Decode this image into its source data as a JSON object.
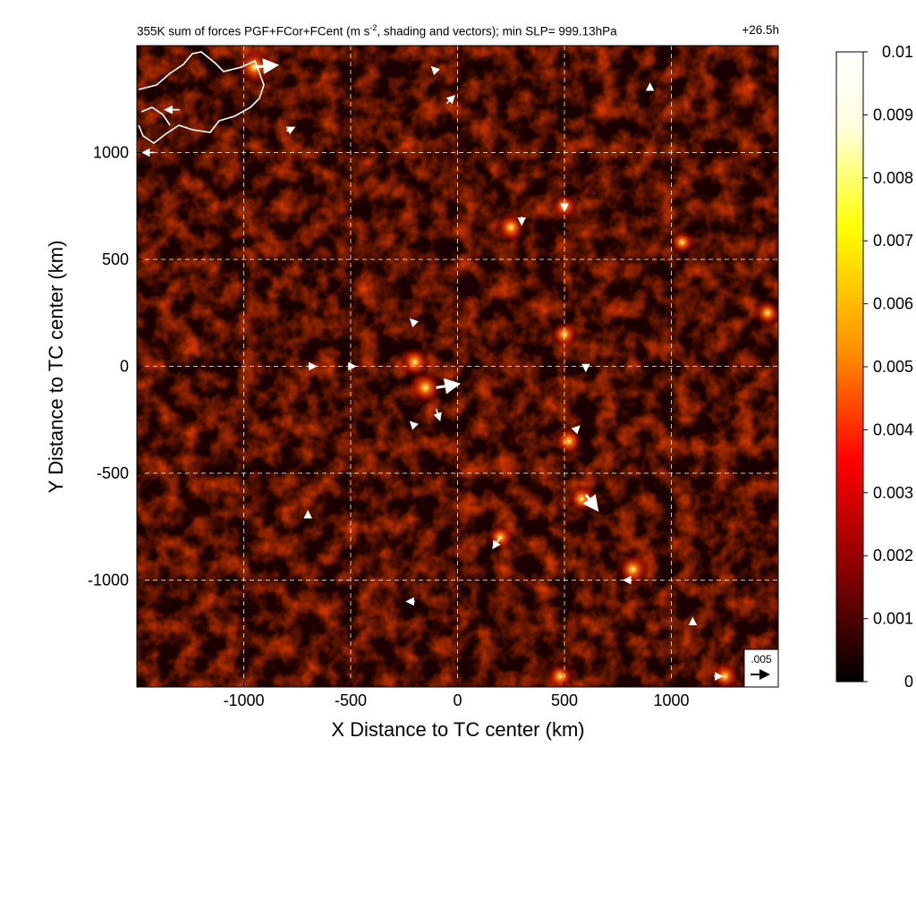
{
  "chart_data": {
    "type": "heatmap",
    "title_main": "355K sum of forces PGF+FCor+FCent (m s",
    "title_sup": "-2",
    "title_rest": ", shading and vectors); min SLP= 999.13hPa",
    "time_label": "+26.5h",
    "xlabel": "X Distance to TC center (km)",
    "ylabel": "Y Distance to TC center (km)",
    "xlim": [
      -1500,
      1500
    ],
    "ylim": [
      -1500,
      1500
    ],
    "xticks": [
      -1000,
      -500,
      0,
      500,
      1000
    ],
    "yticks": [
      -1000,
      -500,
      0,
      500,
      1000
    ],
    "grid": true,
    "colorbar": {
      "min": 0,
      "max": 0.01,
      "ticks": [
        "0",
        "0.001",
        "0.002",
        "0.003",
        "0.004",
        "0.005",
        "0.006",
        "0.007",
        "0.008",
        "0.009",
        "0.01"
      ],
      "colors": [
        "#000000",
        "#8b0000",
        "#ff0000",
        "#ff8c00",
        "#ffff00",
        "#ffffe0",
        "#ffffff"
      ]
    },
    "reference_vector": {
      "label": ".005",
      "value": 0.005
    },
    "hotspots": [
      {
        "x": -950,
        "y": 1400,
        "v": 0.009
      },
      {
        "x": -150,
        "y": -100,
        "v": 0.008
      },
      {
        "x": -200,
        "y": 20,
        "v": 0.007
      },
      {
        "x": 250,
        "y": 650,
        "v": 0.007
      },
      {
        "x": 500,
        "y": 150,
        "v": 0.006
      },
      {
        "x": 520,
        "y": -350,
        "v": 0.006
      },
      {
        "x": 820,
        "y": -950,
        "v": 0.008
      },
      {
        "x": 580,
        "y": -620,
        "v": 0.006
      },
      {
        "x": 200,
        "y": -800,
        "v": 0.005
      },
      {
        "x": 1450,
        "y": 250,
        "v": 0.006
      },
      {
        "x": 480,
        "y": -1450,
        "v": 0.006
      },
      {
        "x": 1250,
        "y": -1450,
        "v": 0.006
      },
      {
        "x": 1050,
        "y": 580,
        "v": 0.005
      },
      {
        "x": 500,
        "y": 750,
        "v": 0.005
      }
    ],
    "vectors": [
      {
        "x": -950,
        "y": 1400,
        "u": 0.006,
        "v": 0.0005
      },
      {
        "x": -1300,
        "y": 1200,
        "u": -0.004,
        "v": 0.0
      },
      {
        "x": -1420,
        "y": 1000,
        "u": -0.003,
        "v": 0.0
      },
      {
        "x": -800,
        "y": 1100,
        "u": 0.002,
        "v": 0.001
      },
      {
        "x": -50,
        "y": 1230,
        "u": 0.002,
        "v": 0.002
      },
      {
        "x": -100,
        "y": 1380,
        "u": -0.001,
        "v": 0.001
      },
      {
        "x": 300,
        "y": 700,
        "u": 0.0,
        "v": -0.002
      },
      {
        "x": 500,
        "y": 750,
        "u": 0.0,
        "v": -0.001
      },
      {
        "x": -200,
        "y": 200,
        "u": -0.001,
        "v": 0.001
      },
      {
        "x": -100,
        "y": -100,
        "u": 0.006,
        "v": 0.001
      },
      {
        "x": -100,
        "y": -200,
        "u": 0.001,
        "v": -0.003
      },
      {
        "x": -200,
        "y": -280,
        "u": -0.001,
        "v": 0.001
      },
      {
        "x": -700,
        "y": 0,
        "u": 0.002,
        "v": 0.0
      },
      {
        "x": -500,
        "y": 0,
        "u": 0.001,
        "v": 0.0
      },
      {
        "x": 600,
        "y": -600,
        "u": 0.003,
        "v": -0.004
      },
      {
        "x": 200,
        "y": -800,
        "u": -0.002,
        "v": -0.003
      },
      {
        "x": 550,
        "y": -300,
        "u": 0.001,
        "v": 0.001
      },
      {
        "x": 600,
        "y": 0,
        "u": 0.0,
        "v": -0.001
      },
      {
        "x": 800,
        "y": -1000,
        "u": -0.001,
        "v": 0.0
      },
      {
        "x": 1100,
        "y": -1200,
        "u": 0.0,
        "v": 0.001
      },
      {
        "x": 1200,
        "y": -1450,
        "u": 0.002,
        "v": 0.0
      },
      {
        "x": -200,
        "y": -1100,
        "u": -0.002,
        "v": 0.0
      },
      {
        "x": -700,
        "y": -700,
        "u": 0.0,
        "v": 0.001
      },
      {
        "x": 900,
        "y": 1300,
        "u": 0.0,
        "v": 0.001
      }
    ]
  }
}
